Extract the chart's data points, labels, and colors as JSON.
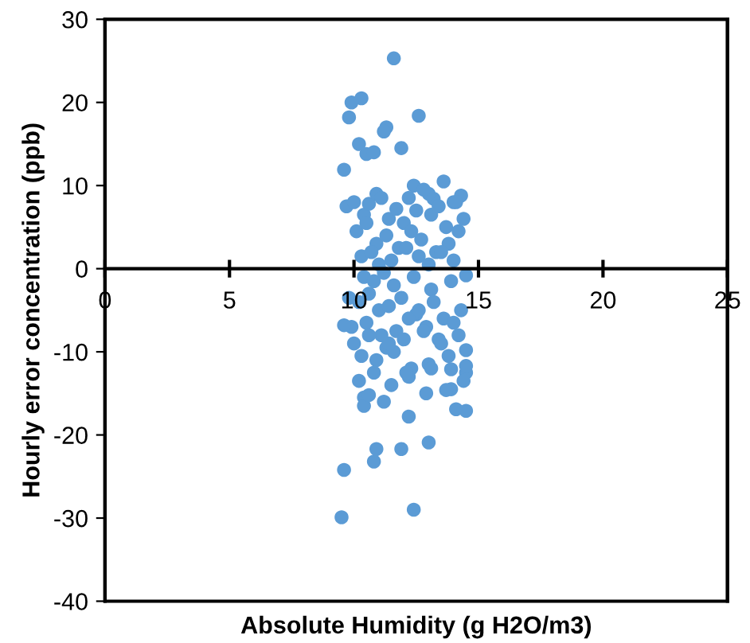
{
  "chart_data": {
    "type": "scatter",
    "xlabel": "Absolute Humidity (g H2O/m3)",
    "ylabel": "Hourly error concentration (ppb)",
    "xlim": [
      0,
      25
    ],
    "ylim": [
      -40,
      30
    ],
    "xticks": [
      0,
      5,
      10,
      15,
      20,
      25
    ],
    "yticks": [
      -40,
      -30,
      -20,
      -10,
      0,
      10,
      20,
      30
    ],
    "grid": false,
    "marker": "circle",
    "series": [
      {
        "color": "#5b9bd5",
        "x": [
          11.6,
          10.3,
          9.9,
          9.8,
          12.6,
          9.6,
          10.5,
          11.3,
          11.2,
          10.2,
          10.8,
          11.9,
          12.4,
          13.2,
          13.6,
          13.0,
          14.0,
          14.3,
          9.7,
          10.0,
          10.4,
          10.6,
          10.9,
          11.1,
          11.4,
          11.7,
          12.0,
          12.2,
          12.5,
          12.8,
          13.1,
          13.4,
          13.7,
          14.1,
          14.4,
          10.1,
          10.5,
          10.9,
          11.3,
          11.8,
          12.3,
          12.7,
          13.3,
          13.8,
          14.2,
          10.3,
          10.7,
          11.0,
          11.5,
          12.1,
          12.6,
          13.0,
          13.5,
          14.0,
          10.4,
          10.8,
          11.2,
          11.6,
          12.4,
          13.1,
          13.9,
          14.5,
          9.8,
          10.2,
          10.6,
          11.0,
          11.4,
          11.9,
          12.5,
          13.2,
          13.6,
          14.3,
          9.9,
          10.5,
          11.1,
          11.7,
          12.2,
          12.9,
          13.4,
          14.0,
          10.0,
          10.6,
          11.3,
          12.0,
          12.8,
          13.5,
          14.2,
          10.3,
          10.9,
          11.6,
          12.3,
          13.0,
          13.8,
          14.5,
          10.2,
          10.8,
          11.5,
          12.2,
          13.1,
          14.4,
          9.6,
          10.4,
          11.2,
          12.1,
          12.9,
          13.9,
          9.6,
          9.5,
          12.4,
          10.8,
          10.9,
          11.9,
          13.0,
          12.2,
          14.1,
          14.5,
          13.7,
          13.9,
          14.5,
          14.5,
          10.4,
          10.6,
          11.4,
          12.6
        ],
        "values": [
          25.3,
          20.5,
          20.0,
          18.2,
          18.4,
          11.9,
          13.8,
          17.0,
          16.5,
          15.0,
          14.0,
          14.5,
          10.0,
          8.4,
          10.5,
          9.0,
          8.0,
          8.8,
          7.5,
          8.0,
          6.5,
          7.8,
          9.0,
          8.5,
          6.0,
          7.2,
          5.5,
          8.5,
          7.0,
          9.5,
          6.5,
          7.5,
          5.0,
          8.0,
          6.0,
          4.5,
          5.5,
          3.0,
          4.0,
          2.5,
          4.5,
          3.5,
          2.0,
          3.0,
          4.5,
          1.5,
          2.0,
          0.5,
          1.0,
          2.5,
          1.5,
          0.5,
          2.0,
          1.0,
          -1.0,
          -1.5,
          -0.5,
          -2.0,
          -1.0,
          -2.5,
          -1.5,
          -0.8,
          -3.5,
          -4.0,
          -3.0,
          -5.0,
          -4.5,
          -3.5,
          -5.5,
          -4.0,
          -6.0,
          -5.0,
          -7.0,
          -6.5,
          -8.0,
          -7.5,
          -6.0,
          -7.0,
          -8.5,
          -6.5,
          -9.0,
          -8.0,
          -9.5,
          -8.5,
          -7.5,
          -9.0,
          -8.0,
          -10.5,
          -11.0,
          -10.0,
          -12.0,
          -11.5,
          -10.5,
          -12.5,
          -13.5,
          -12.5,
          -14.0,
          -13.0,
          -12.0,
          -13.5,
          -6.8,
          -15.5,
          -16.0,
          -12.5,
          -15.0,
          -14.5,
          -24.2,
          -29.9,
          -29.0,
          -23.2,
          -21.7,
          -21.7,
          -20.9,
          -17.8,
          -16.9,
          -17.1,
          -14.6,
          -12.1,
          -11.7,
          -9.8,
          -16.5,
          -15.2,
          -9.0,
          -5.0
        ]
      }
    ]
  }
}
